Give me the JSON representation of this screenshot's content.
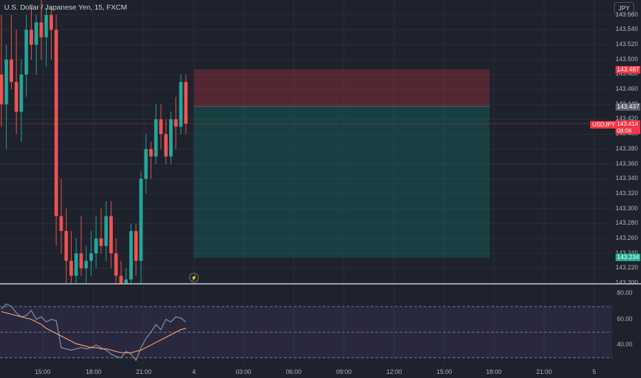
{
  "header": {
    "title": "U.S. Dollar / Japanese Yen, 15, FXCM",
    "currency_button": "JPY"
  },
  "price_axis": {
    "labels": [
      "143.560",
      "143.540",
      "143.520",
      "143.500",
      "143.480",
      "143.460",
      "143.440",
      "143.420",
      "143.400",
      "143.380",
      "143.360",
      "143.340",
      "143.320",
      "143.300",
      "143.280",
      "143.260",
      "143.240",
      "143.220",
      "143.200"
    ]
  },
  "tags": {
    "stop_price": "143.487",
    "entry_price": "143.437",
    "symbol": "USDJPY",
    "current_price": "143.414",
    "countdown": "08:06",
    "target_price": "143.234"
  },
  "rsi_axis": {
    "labels": [
      "80.00",
      "60.00",
      "40.00"
    ]
  },
  "time_axis": {
    "labels": [
      "15:00",
      "18:00",
      "21:00",
      "4",
      "03:00",
      "06:00",
      "09:00",
      "12:00",
      "15:00",
      "18:00",
      "21:00",
      "5"
    ]
  },
  "colors": {
    "background": "#1e222d",
    "up": "#26a69a",
    "down": "#ef5350",
    "stop_zone": "#f23645",
    "target_zone": "#089981",
    "rsi_line": "#7e57c2",
    "rsi_ma": "#f7a26b"
  },
  "icons": {
    "flash": "lightning-icon"
  },
  "chart_data": {
    "type": "candlestick",
    "symbol": "USDJPY",
    "interval": "15",
    "ohlc": [
      {
        "o": 143.48,
        "h": 143.56,
        "l": 143.41,
        "c": 143.44
      },
      {
        "o": 143.44,
        "h": 143.52,
        "l": 143.38,
        "c": 143.5
      },
      {
        "o": 143.5,
        "h": 143.56,
        "l": 143.46,
        "c": 143.47
      },
      {
        "o": 143.47,
        "h": 143.54,
        "l": 143.4,
        "c": 143.43
      },
      {
        "o": 143.43,
        "h": 143.5,
        "l": 143.39,
        "c": 143.48
      },
      {
        "o": 143.48,
        "h": 143.56,
        "l": 143.45,
        "c": 143.54
      },
      {
        "o": 143.54,
        "h": 143.57,
        "l": 143.5,
        "c": 143.52
      },
      {
        "o": 143.52,
        "h": 143.56,
        "l": 143.48,
        "c": 143.55
      },
      {
        "o": 143.55,
        "h": 143.58,
        "l": 143.5,
        "c": 143.53
      },
      {
        "o": 143.53,
        "h": 143.57,
        "l": 143.49,
        "c": 143.56
      },
      {
        "o": 143.56,
        "h": 143.57,
        "l": 143.5,
        "c": 143.54
      },
      {
        "o": 143.54,
        "h": 143.56,
        "l": 143.25,
        "c": 143.29
      },
      {
        "o": 143.29,
        "h": 143.34,
        "l": 143.24,
        "c": 143.27
      },
      {
        "o": 143.27,
        "h": 143.3,
        "l": 143.2,
        "c": 143.23
      },
      {
        "o": 143.23,
        "h": 143.27,
        "l": 143.2,
        "c": 143.21
      },
      {
        "o": 143.21,
        "h": 143.26,
        "l": 143.2,
        "c": 143.24
      },
      {
        "o": 143.24,
        "h": 143.29,
        "l": 143.21,
        "c": 143.22
      },
      {
        "o": 143.22,
        "h": 143.25,
        "l": 143.2,
        "c": 143.23
      },
      {
        "o": 143.23,
        "h": 143.27,
        "l": 143.21,
        "c": 143.24
      },
      {
        "o": 143.24,
        "h": 143.29,
        "l": 143.22,
        "c": 143.26
      },
      {
        "o": 143.26,
        "h": 143.3,
        "l": 143.24,
        "c": 143.25
      },
      {
        "o": 143.25,
        "h": 143.31,
        "l": 143.23,
        "c": 143.29
      },
      {
        "o": 143.29,
        "h": 143.31,
        "l": 143.22,
        "c": 143.24
      },
      {
        "o": 143.24,
        "h": 143.26,
        "l": 143.2,
        "c": 143.21
      },
      {
        "o": 143.21,
        "h": 143.23,
        "l": 143.195,
        "c": 143.2
      },
      {
        "o": 143.2,
        "h": 143.22,
        "l": 143.195,
        "c": 143.205
      },
      {
        "o": 143.205,
        "h": 143.28,
        "l": 143.2,
        "c": 143.27
      },
      {
        "o": 143.27,
        "h": 143.28,
        "l": 143.21,
        "c": 143.23
      },
      {
        "o": 143.23,
        "h": 143.35,
        "l": 143.2,
        "c": 143.34
      },
      {
        "o": 143.34,
        "h": 143.4,
        "l": 143.32,
        "c": 143.38
      },
      {
        "o": 143.38,
        "h": 143.39,
        "l": 143.34,
        "c": 143.37
      },
      {
        "o": 143.37,
        "h": 143.44,
        "l": 143.36,
        "c": 143.42
      },
      {
        "o": 143.42,
        "h": 143.44,
        "l": 143.38,
        "c": 143.4
      },
      {
        "o": 143.4,
        "h": 143.42,
        "l": 143.36,
        "c": 143.37
      },
      {
        "o": 143.37,
        "h": 143.43,
        "l": 143.36,
        "c": 143.42
      },
      {
        "o": 143.42,
        "h": 143.45,
        "l": 143.38,
        "c": 143.41
      },
      {
        "o": 143.41,
        "h": 143.48,
        "l": 143.4,
        "c": 143.47
      },
      {
        "o": 143.47,
        "h": 143.48,
        "l": 143.4,
        "c": 143.414
      }
    ],
    "position": {
      "entry": 143.437,
      "stop": 143.487,
      "target": 143.234
    },
    "rsi": [
      68,
      72,
      70,
      65,
      62,
      63,
      67,
      60,
      62,
      58,
      60,
      59,
      38,
      37,
      36,
      37,
      38,
      37,
      38,
      40,
      38,
      36,
      33,
      31,
      30,
      35,
      33,
      28,
      38,
      45,
      50,
      56,
      52,
      60,
      58,
      62,
      61,
      58
    ],
    "rsi_ma": [
      66,
      65,
      64,
      63,
      62,
      61,
      60,
      58,
      56,
      53,
      51,
      49,
      47,
      45,
      43,
      41,
      40,
      39,
      38,
      38,
      37,
      37,
      36,
      35,
      34,
      34,
      34,
      35,
      36,
      38,
      40,
      42,
      44,
      46,
      48,
      50,
      52,
      53
    ],
    "rsi_levels": [
      70,
      50,
      30
    ],
    "rsi_range": [
      25,
      85
    ],
    "y_range": [
      143.2,
      143.58
    ]
  }
}
